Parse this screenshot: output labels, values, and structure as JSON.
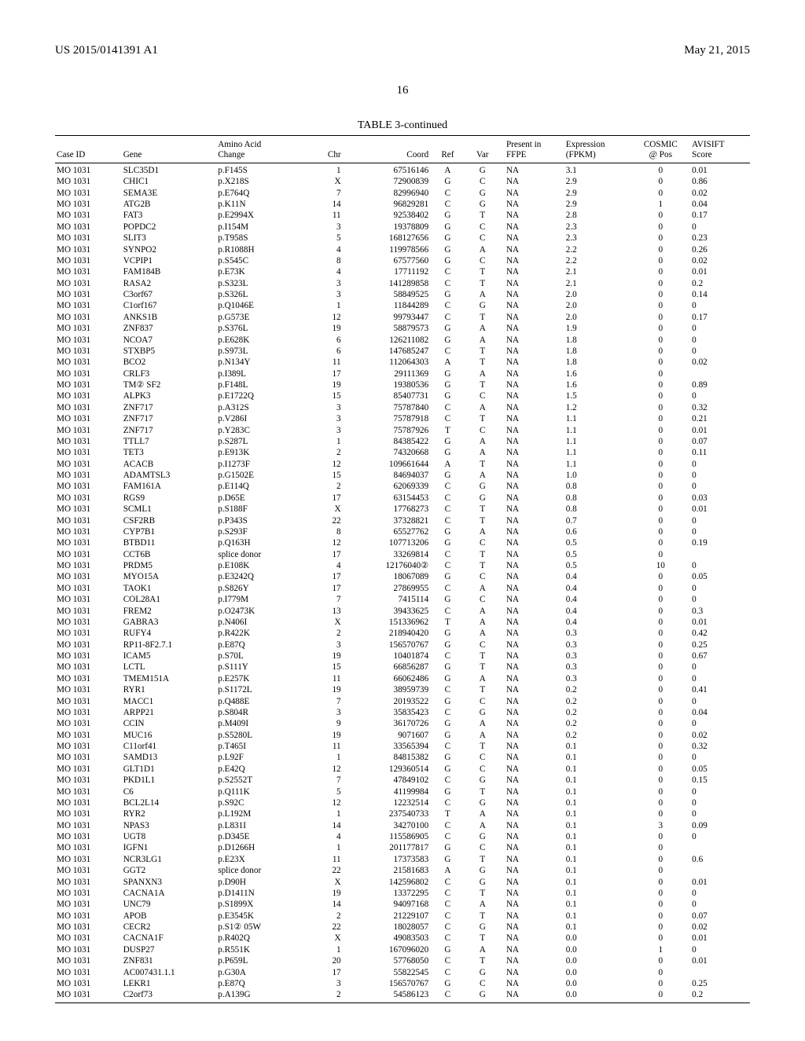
{
  "header": {
    "pub_number": "US 2015/0141391 A1",
    "pub_date": "May 21, 2015",
    "page_number": "16"
  },
  "table": {
    "caption": "TABLE 3-continued",
    "columns": [
      {
        "key": "case",
        "label": "Case ID"
      },
      {
        "key": "gene",
        "label": "Gene"
      },
      {
        "key": "aa",
        "label": "Amino Acid\nChange"
      },
      {
        "key": "chr",
        "label": "Chr"
      },
      {
        "key": "coord",
        "label": "Coord"
      },
      {
        "key": "ref",
        "label": "Ref"
      },
      {
        "key": "var",
        "label": "Var"
      },
      {
        "key": "ffpe",
        "label": "Present in\nFFPE"
      },
      {
        "key": "expr",
        "label": "Expression\n(FPKM)"
      },
      {
        "key": "cosmic",
        "label": "COSMIC\n@ Pos"
      },
      {
        "key": "avisift",
        "label": "AVISIFT\nScore"
      }
    ],
    "rows": [
      [
        "MO 1031",
        "SLC35D1",
        "p.F145S",
        "1",
        "67516146",
        "A",
        "G",
        "NA",
        "3.1",
        "0",
        "0.01"
      ],
      [
        "MO 1031",
        "CHIC1",
        "p.X218S",
        "X",
        "72900839",
        "G",
        "C",
        "NA",
        "2.9",
        "0",
        "0.86"
      ],
      [
        "MO 1031",
        "SEMA3E",
        "p.E764Q",
        "7",
        "82996940",
        "C",
        "G",
        "NA",
        "2.9",
        "0",
        "0.02"
      ],
      [
        "MO 1031",
        "ATG2B",
        "p.K11N",
        "14",
        "96829281",
        "C",
        "G",
        "NA",
        "2.9",
        "1",
        "0.04"
      ],
      [
        "MO 1031",
        "FAT3",
        "p.E2994X",
        "11",
        "92538402",
        "G",
        "T",
        "NA",
        "2.8",
        "0",
        "0.17"
      ],
      [
        "MO 1031",
        "POPDC2",
        "p.I154M",
        "3",
        "19378809",
        "G",
        "C",
        "NA",
        "2.3",
        "0",
        "0"
      ],
      [
        "MO 1031",
        "SLIT3",
        "p.T958S",
        "5",
        "168127656",
        "G",
        "C",
        "NA",
        "2.3",
        "0",
        "0.23"
      ],
      [
        "MO 1031",
        "SYNPO2",
        "p.R1088H",
        "4",
        "119978566",
        "G",
        "A",
        "NA",
        "2.2",
        "0",
        "0.26"
      ],
      [
        "MO 1031",
        "VCPIP1",
        "p.S545C",
        "8",
        "67577560",
        "G",
        "C",
        "NA",
        "2.2",
        "0",
        "0.02"
      ],
      [
        "MO 1031",
        "FAM184B",
        "p.E73K",
        "4",
        "17711192",
        "C",
        "T",
        "NA",
        "2.1",
        "0",
        "0.01"
      ],
      [
        "MO 1031",
        "RASA2",
        "p.S323L",
        "3",
        "141289858",
        "C",
        "T",
        "NA",
        "2.1",
        "0",
        "0.2"
      ],
      [
        "MO 1031",
        "C3orf67",
        "p.S326L",
        "3",
        "58849525",
        "G",
        "A",
        "NA",
        "2.0",
        "0",
        "0.14"
      ],
      [
        "MO 1031",
        "C1orf167",
        "p.Q1046E",
        "1",
        "11844289",
        "C",
        "G",
        "NA",
        "2.0",
        "0",
        "0"
      ],
      [
        "MO 1031",
        "ANKS1B",
        "p.G573E",
        "12",
        "99793447",
        "C",
        "T",
        "NA",
        "2.0",
        "0",
        "0.17"
      ],
      [
        "MO 1031",
        "ZNF837",
        "p.S376L",
        "19",
        "58879573",
        "G",
        "A",
        "NA",
        "1.9",
        "0",
        "0"
      ],
      [
        "MO 1031",
        "NCOA7",
        "p.E628K",
        "6",
        "126211082",
        "G",
        "A",
        "NA",
        "1.8",
        "0",
        "0"
      ],
      [
        "MO 1031",
        "STXBP5",
        "p.S973L",
        "6",
        "147685247",
        "C",
        "T",
        "NA",
        "1.8",
        "0",
        "0"
      ],
      [
        "MO 1031",
        "BCO2",
        "p.N134Y",
        "11",
        "112064303",
        "A",
        "T",
        "NA",
        "1.8",
        "0",
        "0.02"
      ],
      [
        "MO 1031",
        "CRLF3",
        "p.I389L",
        "17",
        "29111369",
        "G",
        "A",
        "NA",
        "1.6",
        "0",
        ""
      ],
      [
        "MO 1031",
        "TM② SF2",
        "p.F148L",
        "19",
        "19380536",
        "G",
        "T",
        "NA",
        "1.6",
        "0",
        "0.89"
      ],
      [
        "MO 1031",
        "ALPK3",
        "p.E1722Q",
        "15",
        "85407731",
        "G",
        "C",
        "NA",
        "1.5",
        "0",
        "0"
      ],
      [
        "MO 1031",
        "ZNF717",
        "p.A312S",
        "3",
        "75787840",
        "C",
        "A",
        "NA",
        "1.2",
        "0",
        "0.32"
      ],
      [
        "MO 1031",
        "ZNF717",
        "p.V286I",
        "3",
        "75787918",
        "C",
        "T",
        "NA",
        "1.1",
        "0",
        "0.21"
      ],
      [
        "MO 1031",
        "ZNF717",
        "p.Y283C",
        "3",
        "75787926",
        "T",
        "C",
        "NA",
        "1.1",
        "0",
        "0.01"
      ],
      [
        "MO 1031",
        "TTLL7",
        "p.S287L",
        "1",
        "84385422",
        "G",
        "A",
        "NA",
        "1.1",
        "0",
        "0.07"
      ],
      [
        "MO 1031",
        "TET3",
        "p.E913K",
        "2",
        "74320668",
        "G",
        "A",
        "NA",
        "1.1",
        "0",
        "0.11"
      ],
      [
        "MO 1031",
        "ACACB",
        "p.I1273F",
        "12",
        "109661644",
        "A",
        "T",
        "NA",
        "1.1",
        "0",
        "0"
      ],
      [
        "MO 1031",
        "ADAMTSL3",
        "p.G1502E",
        "15",
        "84694037",
        "G",
        "A",
        "NA",
        "1.0",
        "0",
        "0"
      ],
      [
        "MO 1031",
        "FAM161A",
        "p.E114Q",
        "2",
        "62069339",
        "C",
        "G",
        "NA",
        "0.8",
        "0",
        "0"
      ],
      [
        "MO 1031",
        "RGS9",
        "p.D65E",
        "17",
        "63154453",
        "C",
        "G",
        "NA",
        "0.8",
        "0",
        "0.03"
      ],
      [
        "MO 1031",
        "SCML1",
        "p.S188F",
        "X",
        "17768273",
        "C",
        "T",
        "NA",
        "0.8",
        "0",
        "0.01"
      ],
      [
        "MO 1031",
        "CSF2RB",
        "p.P343S",
        "22",
        "37328821",
        "C",
        "T",
        "NA",
        "0.7",
        "0",
        "0"
      ],
      [
        "MO 1031",
        "CYP7B1",
        "p.S293F",
        "8",
        "65527762",
        "G",
        "A",
        "NA",
        "0.6",
        "0",
        "0"
      ],
      [
        "MO 1031",
        "BTBD11",
        "p.Q163H",
        "12",
        "107713206",
        "G",
        "C",
        "NA",
        "0.5",
        "0",
        "0.19"
      ],
      [
        "MO 1031",
        "CCT6B",
        "splice donor",
        "17",
        "33269814",
        "C",
        "T",
        "NA",
        "0.5",
        "0",
        ""
      ],
      [
        "MO 1031",
        "PRDM5",
        "p.E108K",
        "4",
        "12176040②",
        "C",
        "T",
        "NA",
        "0.5",
        "10",
        "0"
      ],
      [
        "MO 1031",
        "MYO15A",
        "p.E3242Q",
        "17",
        "18067089",
        "G",
        "C",
        "NA",
        "0.4",
        "0",
        "0.05"
      ],
      [
        "MO 1031",
        "TAOK1",
        "p.S826Y",
        "17",
        "27869955",
        "C",
        "A",
        "NA",
        "0.4",
        "0",
        "0"
      ],
      [
        "MO 1031",
        "COL28A1",
        "p.I779M",
        "7",
        "7415114",
        "G",
        "C",
        "NA",
        "0.4",
        "0",
        "0"
      ],
      [
        "MO 1031",
        "FREM2",
        "p.O2473K",
        "13",
        "39433625",
        "C",
        "A",
        "NA",
        "0.4",
        "0",
        "0.3"
      ],
      [
        "MO 1031",
        "GABRA3",
        "p.N406I",
        "X",
        "151336962",
        "T",
        "A",
        "NA",
        "0.4",
        "0",
        "0.01"
      ],
      [
        "MO 1031",
        "RUFY4",
        "p.R422K",
        "2",
        "218940420",
        "G",
        "A",
        "NA",
        "0.3",
        "0",
        "0.42"
      ],
      [
        "MO 1031",
        "RP11-8F2.7.1",
        "p.E87Q",
        "3",
        "156570767",
        "G",
        "C",
        "NA",
        "0.3",
        "0",
        "0.25"
      ],
      [
        "MO 1031",
        "ICAM5",
        "p.S70L",
        "19",
        "10401874",
        "C",
        "T",
        "NA",
        "0.3",
        "0",
        "0.67"
      ],
      [
        "MO 1031",
        "LCTL",
        "p.S111Y",
        "15",
        "66856287",
        "G",
        "T",
        "NA",
        "0.3",
        "0",
        "0"
      ],
      [
        "MO 1031",
        "TMEM151A",
        "p.E257K",
        "11",
        "66062486",
        "G",
        "A",
        "NA",
        "0.3",
        "0",
        "0"
      ],
      [
        "MO 1031",
        "RYR1",
        "p.S1172L",
        "19",
        "38959739",
        "C",
        "T",
        "NA",
        "0.2",
        "0",
        "0.41"
      ],
      [
        "MO 1031",
        "MACC1",
        "p.Q488E",
        "7",
        "20193522",
        "G",
        "C",
        "NA",
        "0.2",
        "0",
        "0"
      ],
      [
        "MO 1031",
        "ARPP21",
        "p.S804R",
        "3",
        "35835423",
        "C",
        "G",
        "NA",
        "0.2",
        "0",
        "0.04"
      ],
      [
        "MO 1031",
        "CCIN",
        "p.M409I",
        "9",
        "36170726",
        "G",
        "A",
        "NA",
        "0.2",
        "0",
        "0"
      ],
      [
        "MO 1031",
        "MUC16",
        "p.S5280L",
        "19",
        "9071607",
        "G",
        "A",
        "NA",
        "0.2",
        "0",
        "0.02"
      ],
      [
        "MO 1031",
        "C11orf41",
        "p.T465I",
        "11",
        "33565394",
        "C",
        "T",
        "NA",
        "0.1",
        "0",
        "0.32"
      ],
      [
        "MO 1031",
        "SAMD13",
        "p.L92F",
        "1",
        "84815382",
        "G",
        "C",
        "NA",
        "0.1",
        "0",
        "0"
      ],
      [
        "MO 1031",
        "GLT1D1",
        "p.E42Q",
        "12",
        "129360514",
        "G",
        "C",
        "NA",
        "0.1",
        "0",
        "0.05"
      ],
      [
        "MO 1031",
        "PKD1L1",
        "p.S2552T",
        "7",
        "47849102",
        "C",
        "G",
        "NA",
        "0.1",
        "0",
        "0.15"
      ],
      [
        "MO 1031",
        "C6",
        "p.Q111K",
        "5",
        "41199984",
        "G",
        "T",
        "NA",
        "0.1",
        "0",
        "0"
      ],
      [
        "MO 1031",
        "BCL2L14",
        "p.S92C",
        "12",
        "12232514",
        "C",
        "G",
        "NA",
        "0.1",
        "0",
        "0"
      ],
      [
        "MO 1031",
        "RYR2",
        "p.L192M",
        "1",
        "237540733",
        "T",
        "A",
        "NA",
        "0.1",
        "0",
        "0"
      ],
      [
        "MO 1031",
        "NPAS3",
        "p.L831I",
        "14",
        "34270100",
        "C",
        "A",
        "NA",
        "0.1",
        "3",
        "0.09"
      ],
      [
        "MO 1031",
        "UGT8",
        "p.D345E",
        "4",
        "115586905",
        "C",
        "G",
        "NA",
        "0.1",
        "0",
        "0"
      ],
      [
        "MO 1031",
        "IGFN1",
        "p.D1266H",
        "1",
        "201177817",
        "G",
        "C",
        "NA",
        "0.1",
        "0",
        ""
      ],
      [
        "MO 1031",
        "NCR3LG1",
        "p.E23X",
        "11",
        "17373583",
        "G",
        "T",
        "NA",
        "0.1",
        "0",
        "0.6"
      ],
      [
        "MO 1031",
        "GGT2",
        "splice donor",
        "22",
        "21581683",
        "A",
        "G",
        "NA",
        "0.1",
        "0",
        ""
      ],
      [
        "MO 1031",
        "SPANXN3",
        "p.D90H",
        "X",
        "142596802",
        "C",
        "G",
        "NA",
        "0.1",
        "0",
        "0.01"
      ],
      [
        "MO 1031",
        "CACNA1A",
        "p.D1411N",
        "19",
        "13372295",
        "C",
        "T",
        "NA",
        "0.1",
        "0",
        "0"
      ],
      [
        "MO 1031",
        "UNC79",
        "p.S1899X",
        "14",
        "94097168",
        "C",
        "A",
        "NA",
        "0.1",
        "0",
        "0"
      ],
      [
        "MO 1031",
        "APOB",
        "p.E3545K",
        "2",
        "21229107",
        "C",
        "T",
        "NA",
        "0.1",
        "0",
        "0.07"
      ],
      [
        "MO 1031",
        "CECR2",
        "p.S1② 05W",
        "22",
        "18028057",
        "C",
        "G",
        "NA",
        "0.1",
        "0",
        "0.02"
      ],
      [
        "MO 1031",
        "CACNA1F",
        "p.R402Q",
        "X",
        "49083503",
        "C",
        "T",
        "NA",
        "0.0",
        "0",
        "0.01"
      ],
      [
        "MO 1031",
        "DUSP27",
        "p.R551K",
        "1",
        "167096020",
        "G",
        "A",
        "NA",
        "0.0",
        "1",
        "0"
      ],
      [
        "MO 1031",
        "ZNF831",
        "p.P659L",
        "20",
        "57768050",
        "C",
        "T",
        "NA",
        "0.0",
        "0",
        "0.01"
      ],
      [
        "MO 1031",
        "AC007431.1.1",
        "p.G30A",
        "17",
        "55822545",
        "C",
        "G",
        "NA",
        "0.0",
        "0",
        ""
      ],
      [
        "MO 1031",
        "LEKR1",
        "p.E87Q",
        "3",
        "156570767",
        "G",
        "C",
        "NA",
        "0.0",
        "0",
        "0.25"
      ],
      [
        "MO 1031",
        "C2orf73",
        "p.A139G",
        "2",
        "54586123",
        "C",
        "G",
        "NA",
        "0.0",
        "0",
        "0.2"
      ]
    ]
  }
}
